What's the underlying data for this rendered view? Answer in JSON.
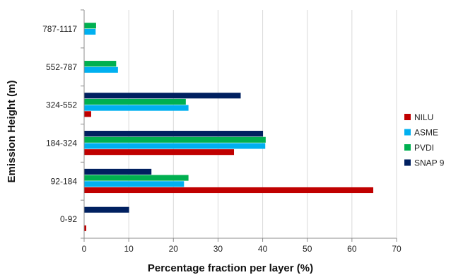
{
  "chart_data": {
    "type": "bar",
    "orientation": "horizontal",
    "title": "",
    "xlabel": "Percentage fraction per layer (%)",
    "ylabel": "Emission Height (m)",
    "xlim": [
      0,
      70
    ],
    "xticks": [
      "0",
      "10",
      "20",
      "30",
      "40",
      "50",
      "60",
      "70"
    ],
    "categories": [
      "0-92",
      "92-184",
      "184-324",
      "324-552",
      "552-787",
      "787-1117"
    ],
    "grid": "vertical gridlines",
    "legend_position": "right",
    "series": [
      {
        "name": "NILU",
        "color": "#C00000",
        "values": [
          0.4,
          64.7,
          33.5,
          1.5,
          0,
          0
        ]
      },
      {
        "name": "ASME",
        "color": "#00B0F0",
        "values": [
          0,
          22.3,
          40.5,
          23.3,
          7.5,
          2.5
        ]
      },
      {
        "name": "PVDI",
        "color": "#00B050",
        "values": [
          0,
          23.3,
          40.6,
          22.7,
          7.1,
          2.6
        ]
      },
      {
        "name": "SNAP 9",
        "color": "#002060",
        "values": [
          10,
          15.0,
          40.0,
          35.0,
          0,
          0
        ]
      }
    ]
  }
}
